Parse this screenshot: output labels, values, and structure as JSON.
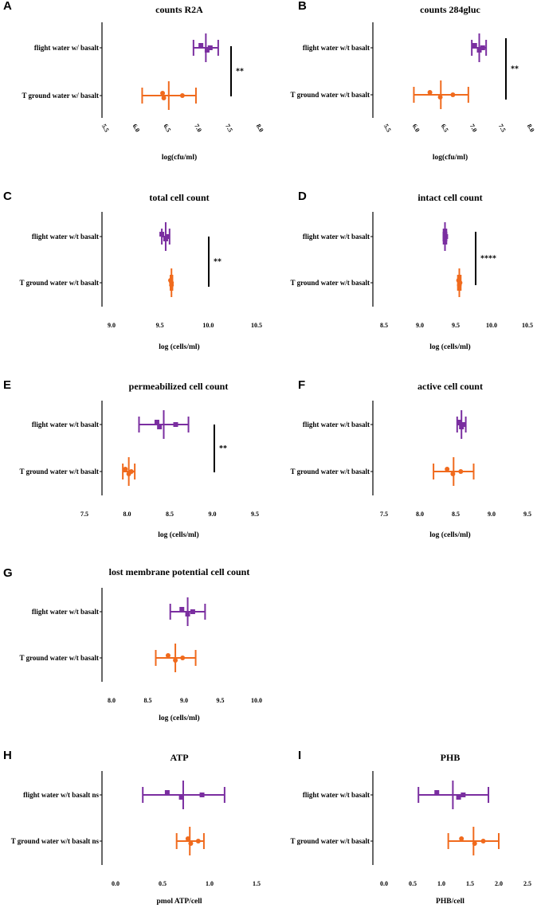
{
  "colors": {
    "purple": "#7a2ea0",
    "orange": "#f06a1d",
    "axis": "#000000"
  },
  "chart_data": [
    {
      "id": "A",
      "letter": "A",
      "type": "scatter",
      "title": "counts R2A",
      "xlabel": "log(cfu/ml)",
      "xlim": [
        5.5,
        8.0
      ],
      "xticks": [
        5.5,
        6.0,
        6.5,
        7.0,
        7.5,
        8.0
      ],
      "tick_labels": [
        "5.5",
        "6.0",
        "6.5",
        "7.0",
        "7.5",
        "8.0"
      ],
      "tick_rotation": 60,
      "series": [
        {
          "name": "flight water w/ basalt",
          "color_key": "purple",
          "marker": "square",
          "points": [
            7.1,
            7.2,
            7.25
          ],
          "mean": 7.18,
          "err": [
            6.98,
            7.38
          ]
        },
        {
          "name": "T ground water w/ basalt",
          "color_key": "orange",
          "marker": "circle",
          "points": [
            6.48,
            6.5,
            6.8
          ],
          "mean": 6.58,
          "err": [
            6.15,
            7.02
          ]
        }
      ],
      "significance": "**"
    },
    {
      "id": "B",
      "letter": "B",
      "type": "scatter",
      "title": "counts 284gluc",
      "xlabel": "log(cfu/ml)",
      "xlim": [
        5.5,
        8.0
      ],
      "xticks": [
        5.5,
        6.0,
        6.5,
        7.0,
        7.5,
        8.0
      ],
      "tick_labels": [
        "5.5",
        "6.0",
        "6.5",
        "7.0",
        "7.5",
        "8.0"
      ],
      "tick_rotation": 60,
      "series": [
        {
          "name": "flight water w/t basalt",
          "color_key": "purple",
          "marker": "square",
          "points": [
            7.08,
            7.16,
            7.22
          ],
          "mean": 7.16,
          "err": [
            7.03,
            7.28
          ]
        },
        {
          "name": "T ground water w/t basalt",
          "color_key": "orange",
          "marker": "circle",
          "points": [
            6.3,
            6.48,
            6.7
          ],
          "mean": 6.49,
          "err": [
            6.02,
            6.97
          ]
        }
      ],
      "significance": "**"
    },
    {
      "id": "C",
      "letter": "C",
      "type": "scatter",
      "title": "total cell count",
      "xlabel": "log (cells/ml)",
      "xlim": [
        9.0,
        10.5
      ],
      "xticks": [
        9.0,
        9.5,
        10.0,
        10.5
      ],
      "tick_labels": [
        "9.0",
        "9.5",
        "10.0",
        "10.5"
      ],
      "tick_rotation": 0,
      "series": [
        {
          "name": "flight water w/t basalt",
          "color_key": "purple",
          "marker": "square",
          "points": [
            9.52,
            9.56,
            9.58
          ],
          "mean": 9.56,
          "err": [
            9.52,
            9.6
          ]
        },
        {
          "name": "T ground water w/t basalt",
          "color_key": "orange",
          "marker": "circle",
          "points": [
            9.61,
            9.62,
            9.62
          ],
          "mean": 9.62,
          "err": [
            9.61,
            9.63
          ]
        }
      ],
      "significance": "**"
    },
    {
      "id": "D",
      "letter": "D",
      "type": "scatter",
      "title": "intact cell count",
      "xlabel": "log (cells/ml)",
      "xlim": [
        8.5,
        10.5
      ],
      "xticks": [
        8.5,
        9.0,
        9.5,
        10.0,
        10.5
      ],
      "tick_labels": [
        "8.5",
        "9.0",
        "9.5",
        "10.0",
        "10.5"
      ],
      "tick_rotation": 0,
      "series": [
        {
          "name": "flight water w/t basalt",
          "color_key": "purple",
          "marker": "square",
          "points": [
            9.35,
            9.35,
            9.36
          ],
          "mean": 9.35,
          "err": [
            9.33,
            9.37
          ]
        },
        {
          "name": "T ground water w/t basalt",
          "color_key": "orange",
          "marker": "circle",
          "points": [
            9.54,
            9.55,
            9.56
          ],
          "mean": 9.55,
          "err": [
            9.53,
            9.57
          ]
        }
      ],
      "significance": "****"
    },
    {
      "id": "E",
      "letter": "E",
      "type": "scatter",
      "title": "permeabilized cell count",
      "xlabel": "log (cells/ml)",
      "xlim": [
        7.5,
        9.5
      ],
      "xticks": [
        7.5,
        8.0,
        8.5,
        9.0,
        9.5
      ],
      "tick_labels": [
        "7.5",
        "8.0",
        "8.5",
        "9.0",
        "9.5"
      ],
      "tick_rotation": 0,
      "series": [
        {
          "name": "flight water w/t basalt",
          "color_key": "purple",
          "marker": "square",
          "points": [
            8.35,
            8.38,
            8.57
          ],
          "mean": 8.43,
          "err": [
            8.14,
            8.72
          ]
        },
        {
          "name": "T ground water w/t basalt",
          "color_key": "orange",
          "marker": "circle",
          "points": [
            7.98,
            8.02,
            8.05
          ],
          "mean": 8.02,
          "err": [
            7.95,
            8.09
          ]
        }
      ],
      "significance": "**"
    },
    {
      "id": "F",
      "letter": "F",
      "type": "scatter",
      "title": "active cell count",
      "xlabel": "log (cells/ml)",
      "xlim": [
        7.5,
        9.5
      ],
      "xticks": [
        7.5,
        8.0,
        8.5,
        9.0,
        9.5
      ],
      "tick_labels": [
        "7.5",
        "8.0",
        "8.5",
        "9.0",
        "9.5"
      ],
      "tick_rotation": 0,
      "series": [
        {
          "name": "flight water w/t basalt",
          "color_key": "purple",
          "marker": "square",
          "points": [
            8.55,
            8.58,
            8.6
          ],
          "mean": 8.58,
          "err": [
            8.52,
            8.64
          ]
        },
        {
          "name": "T ground water w/t basalt",
          "color_key": "orange",
          "marker": "circle",
          "points": [
            8.38,
            8.46,
            8.57
          ],
          "mean": 8.47,
          "err": [
            8.19,
            8.75
          ]
        }
      ],
      "significance": ""
    },
    {
      "id": "G",
      "letter": "G",
      "type": "scatter",
      "title": "lost membrane potential cell count",
      "xlabel": "log (cells/ml)",
      "xlim": [
        8.0,
        10.0
      ],
      "xticks": [
        8.0,
        8.5,
        9.0,
        9.5,
        10.0
      ],
      "tick_labels": [
        "8.0",
        "8.5",
        "9.0",
        "9.5",
        "10.0"
      ],
      "tick_rotation": 0,
      "series": [
        {
          "name": "flight water w/t basalt",
          "color_key": "purple",
          "marker": "square",
          "points": [
            8.97,
            9.05,
            9.12
          ],
          "mean": 9.05,
          "err": [
            8.81,
            9.29
          ]
        },
        {
          "name": "T ground water w/t basalt",
          "color_key": "orange",
          "marker": "circle",
          "points": [
            8.78,
            8.88,
            8.98
          ],
          "mean": 8.88,
          "err": [
            8.61,
            9.16
          ]
        }
      ],
      "significance": ""
    },
    {
      "id": "H",
      "letter": "H",
      "type": "scatter",
      "title": "ATP",
      "xlabel": "pmol ATP/cell",
      "xlim": [
        0.0,
        1.5
      ],
      "xticks": [
        0.0,
        0.5,
        1.0,
        1.5
      ],
      "tick_labels": [
        "0.0",
        "0.5",
        "1.0",
        "1.5"
      ],
      "tick_rotation": 0,
      "series": [
        {
          "name": "flight water w/t basalt ns",
          "color_key": "purple",
          "marker": "square",
          "points": [
            0.55,
            0.7,
            0.92
          ],
          "mean": 0.72,
          "err": [
            0.29,
            1.16
          ]
        },
        {
          "name": "T ground water w/t basalt ns",
          "color_key": "orange",
          "marker": "circle",
          "points": [
            0.77,
            0.8,
            0.88
          ],
          "mean": 0.79,
          "err": [
            0.65,
            0.94
          ]
        }
      ],
      "significance": ""
    },
    {
      "id": "I",
      "letter": "I",
      "type": "scatter",
      "title": "PHB",
      "xlabel": "PHB/cell",
      "xlim": [
        0.0,
        2.5
      ],
      "xticks": [
        0.0,
        0.5,
        1.0,
        1.5,
        2.0,
        2.5
      ],
      "tick_labels": [
        "0.0",
        "0.5",
        "1.0",
        "1.5",
        "2.0",
        "2.5"
      ],
      "tick_rotation": 0,
      "series": [
        {
          "name": "flight water w/t basalt",
          "color_key": "purple",
          "marker": "square",
          "points": [
            0.92,
            1.3,
            1.38
          ],
          "mean": 1.2,
          "err": [
            0.6,
            1.82
          ]
        },
        {
          "name": "T ground water w/t basalt",
          "color_key": "orange",
          "marker": "circle",
          "points": [
            1.35,
            1.58,
            1.73
          ],
          "mean": 1.56,
          "err": [
            1.12,
            2.0
          ]
        }
      ],
      "significance": ""
    }
  ]
}
